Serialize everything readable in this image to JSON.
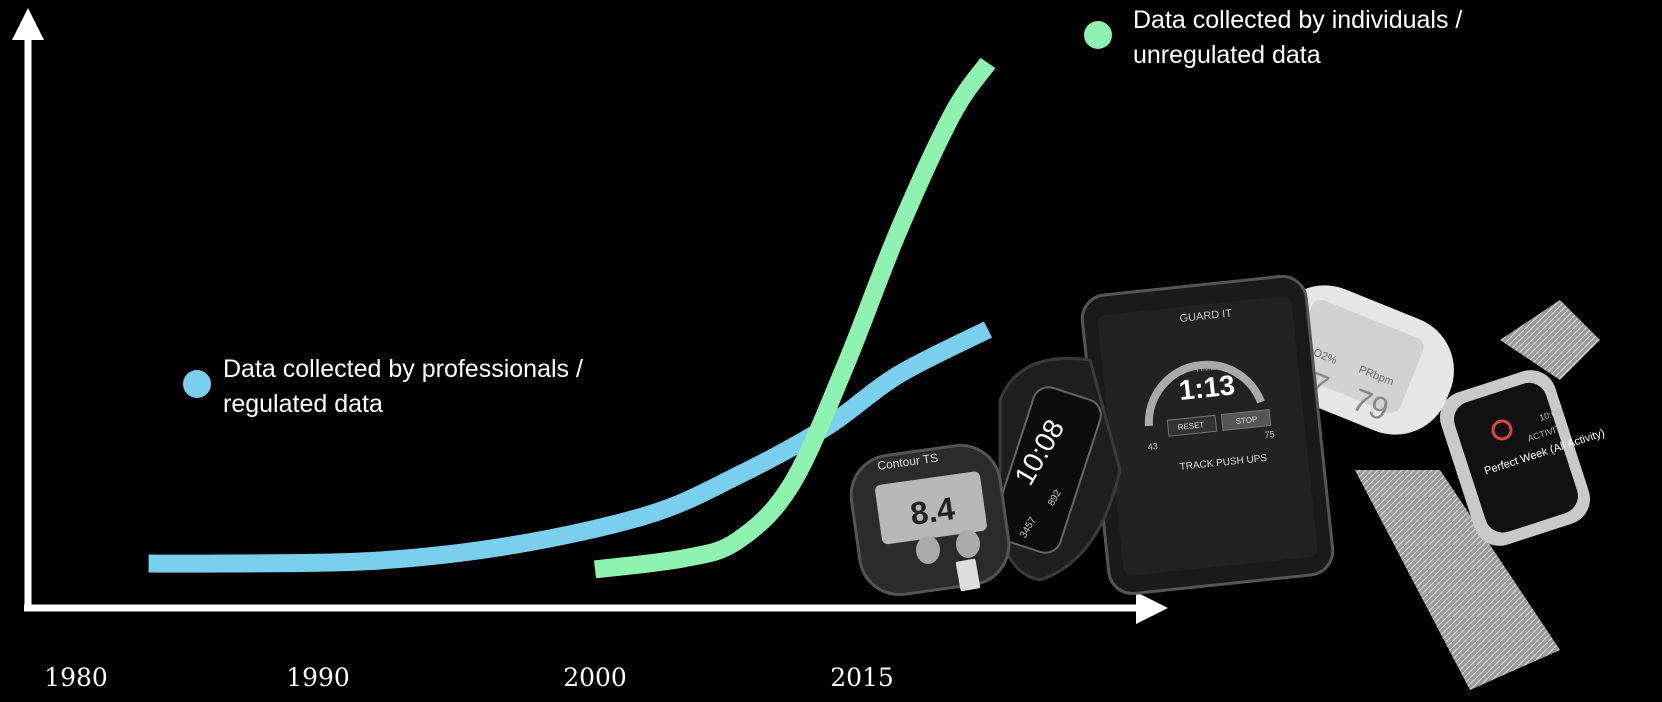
{
  "chart_data": {
    "type": "line",
    "title": "",
    "xlabel": "",
    "ylabel": "",
    "x_ticks": [
      "1980",
      "1990",
      "2000",
      "2015"
    ],
    "series": [
      {
        "name_lines": [
          "Data collected by professionals /",
          "regulated data"
        ],
        "color": "#7acfec",
        "points": [
          [
            1983,
            1
          ],
          [
            1986,
            1
          ],
          [
            1992,
            1.4
          ],
          [
            1997,
            3.8
          ],
          [
            2003,
            8.5
          ],
          [
            2008,
            14.5
          ],
          [
            2013,
            22
          ],
          [
            2017,
            30
          ],
          [
            2022,
            37
          ]
        ]
      },
      {
        "name_lines": [
          "Data collected by individuals /",
          "unregulated data"
        ],
        "color": "#8ef2b0",
        "points": [
          [
            2000,
            0.1
          ],
          [
            2005,
            1.8
          ],
          [
            2008,
            4.5
          ],
          [
            2011,
            13
          ],
          [
            2014,
            31
          ],
          [
            2017,
            52
          ],
          [
            2020,
            70
          ],
          [
            2022,
            78
          ]
        ]
      }
    ],
    "grid": false,
    "legend": "inline labels at curve ends"
  },
  "illustration": {
    "description_icons": [
      "glucose-meter-icon",
      "fitness-band-icon",
      "smartphone-icon",
      "pulse-oximeter-icon",
      "smartwatch-icon"
    ],
    "glucose": {
      "brand": "Contour TS",
      "reading": "8.4"
    },
    "band": {
      "time": "10:08",
      "steps": "3457",
      "cal": "892"
    },
    "phone": {
      "app": "GUARD IT",
      "timer_label": "TIMER",
      "time": "1:13",
      "reset": "RESET",
      "stop": "STOP",
      "task": "TRACK PUSH UPS",
      "stat1": "43",
      "stat2": "75"
    },
    "oximeter": {
      "spo2_label": "SpO2%",
      "spo2": "97",
      "pr_label": "PRbpm",
      "pr": "79"
    },
    "watch": {
      "title": "Perfect Week (All Activity)",
      "tag": "ACTIVITY",
      "time": "10:09"
    }
  }
}
